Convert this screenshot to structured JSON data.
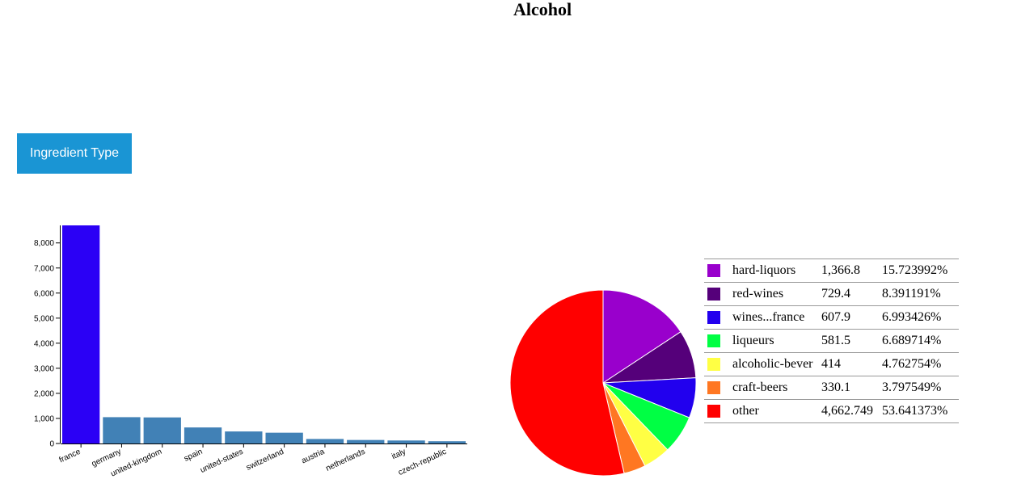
{
  "page": {
    "title": "Alcohol"
  },
  "controls": {
    "type_button_label": "Ingredient Type"
  },
  "colors": {
    "bar_default": "#4181b6",
    "bar_highlight": "#2b00f5",
    "accent_button": "#1a95d4"
  },
  "chart_data": [
    {
      "type": "bar",
      "categories": [
        "france",
        "germany",
        "united-kingdom",
        "spain",
        "united-states",
        "switzerland",
        "austria",
        "netherlands",
        "italy",
        "czech-republic"
      ],
      "values": [
        8700,
        1050,
        1040,
        640,
        480,
        430,
        180,
        140,
        120,
        90
      ],
      "highlight_index": 0,
      "ylim": [
        0,
        8700
      ],
      "yticks": [
        0,
        1000,
        2000,
        3000,
        4000,
        5000,
        6000,
        7000,
        8000
      ],
      "ytick_labels": [
        "0",
        "1,000",
        "2,000",
        "3,000",
        "4,000",
        "5,000",
        "6,000",
        "7,000",
        "8,000"
      ],
      "title": "",
      "xlabel": "",
      "ylabel": ""
    },
    {
      "type": "pie",
      "slices": [
        {
          "label": "hard-liquors",
          "freq_label": "1,366.8",
          "pct_label": "15.723992%",
          "value": 15.723992,
          "color": "#9900cc"
        },
        {
          "label": "red-wines",
          "freq_label": "729.4",
          "pct_label": "8.391191%",
          "value": 8.391191,
          "color": "#55007a"
        },
        {
          "label": "wines...france",
          "freq_label": "607.9",
          "pct_label": "6.993426%",
          "value": 6.993426,
          "color": "#2200ee"
        },
        {
          "label": "liqueurs",
          "freq_label": "581.5",
          "pct_label": "6.689714%",
          "value": 6.689714,
          "color": "#00ff44"
        },
        {
          "label": "alcoholic-bever",
          "freq_label": "414",
          "pct_label": "4.762754%",
          "value": 4.762754,
          "color": "#ffff44"
        },
        {
          "label": "craft-beers",
          "freq_label": "330.1",
          "pct_label": "3.797549%",
          "value": 3.797549,
          "color": "#ff7722"
        },
        {
          "label": "other",
          "freq_label": "4,662.749",
          "pct_label": "53.641373%",
          "value": 53.641373,
          "color": "#ff0000"
        }
      ]
    }
  ]
}
